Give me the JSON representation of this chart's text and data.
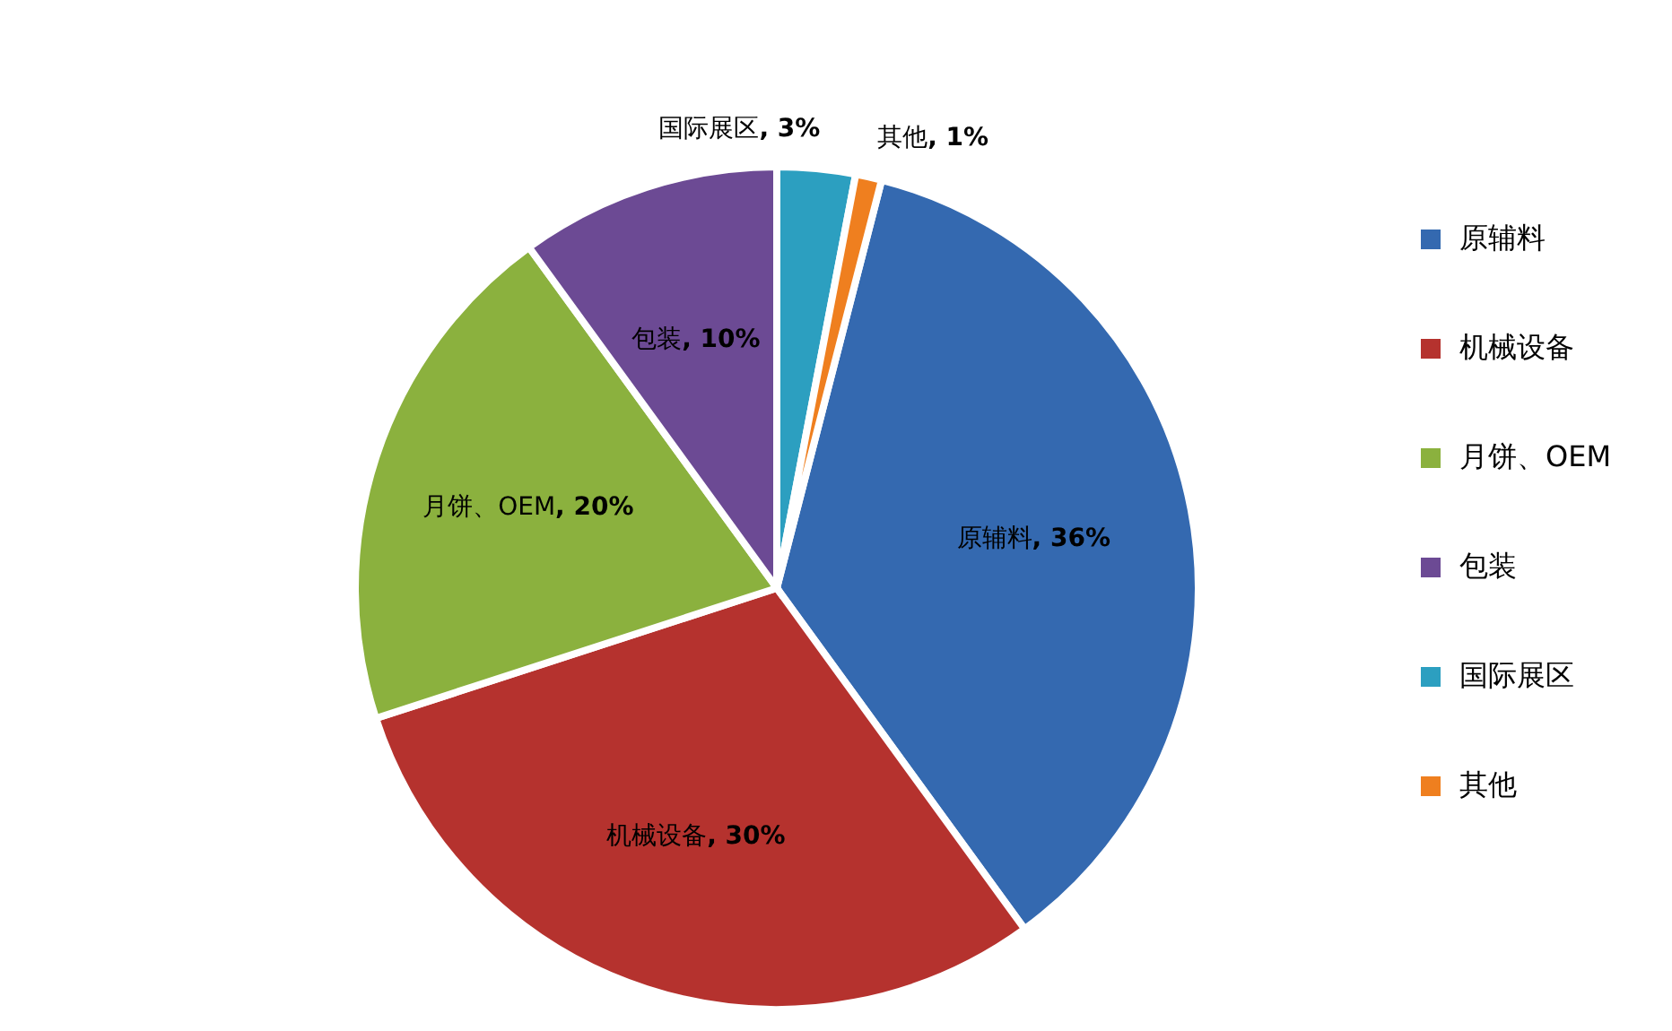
{
  "chart_data": {
    "type": "pie",
    "categories": [
      "原辅料",
      "机械设备",
      "月饼、OEM",
      "包装",
      "国际展区",
      "其他"
    ],
    "values": [
      36,
      30,
      20,
      10,
      3,
      1
    ],
    "colors": [
      "#3469b0",
      "#b5322e",
      "#8bb13e",
      "#6c4a94",
      "#2c9fc0",
      "#ef7f1f"
    ],
    "value_labels": [
      "原辅料, 36%",
      "机械设备, 30%",
      "月饼、OEM, 20%",
      "包装, 10%",
      "国际展区, 3%",
      "其他, 1%"
    ],
    "legend": "right"
  }
}
